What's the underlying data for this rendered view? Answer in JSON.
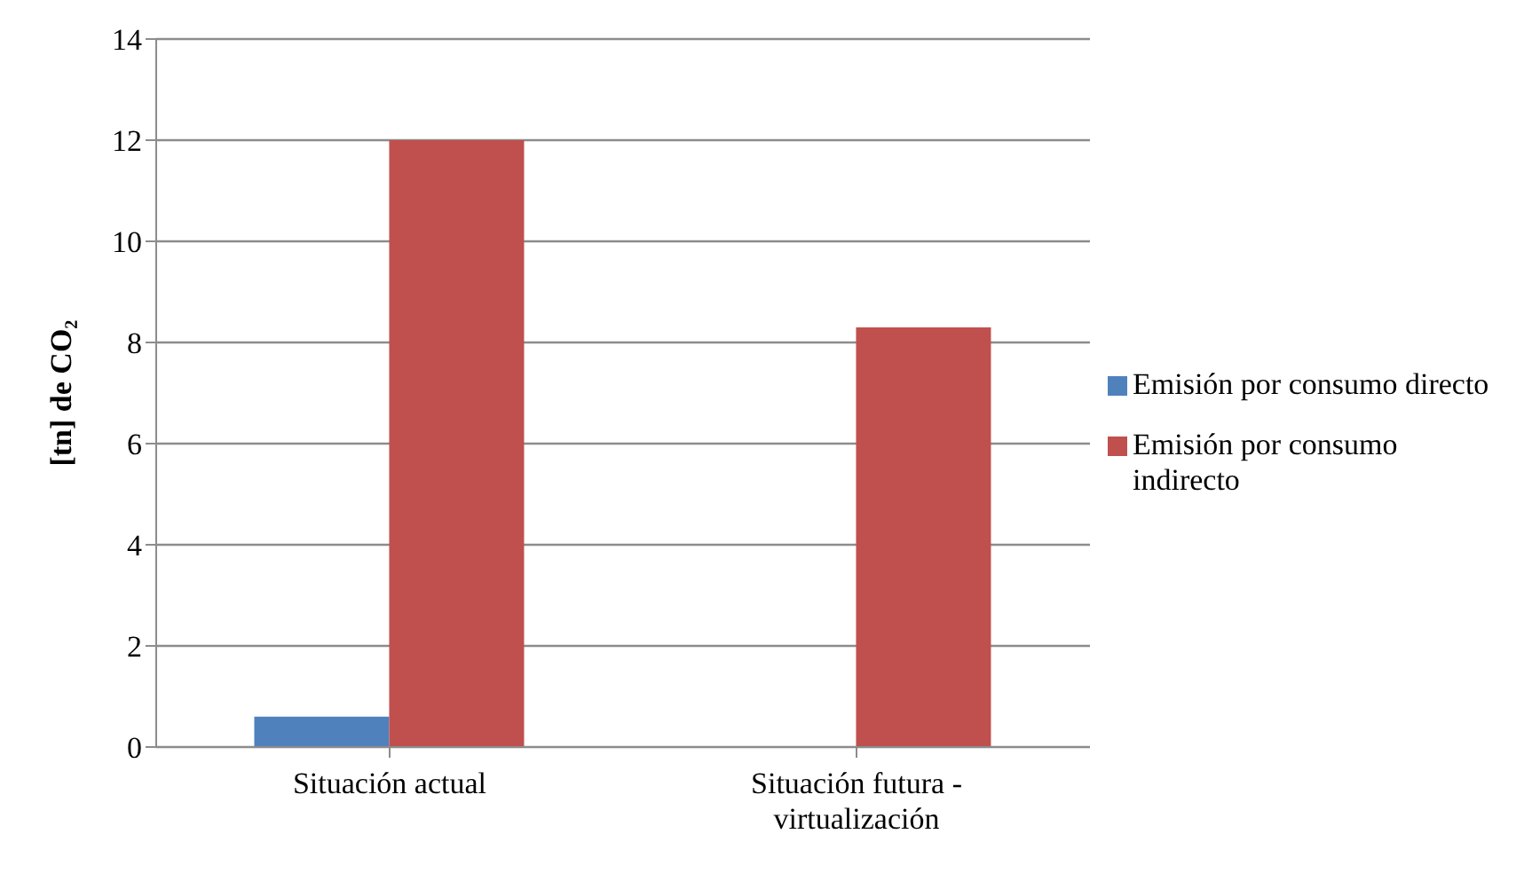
{
  "chart_data": {
    "type": "bar",
    "ylabel": "[tn] de CO₂",
    "categories": [
      "Situación actual",
      "Situación futura - virtualización"
    ],
    "series": [
      {
        "name": "Emisión por consumo directo",
        "color": "#4f81bd",
        "values": [
          0.6,
          0
        ]
      },
      {
        "name": "Emisión por consumo indirecto",
        "color": "#c0504d",
        "values": [
          12,
          8.3
        ]
      }
    ],
    "ylim": [
      0,
      14
    ],
    "yticks": [
      0,
      2,
      4,
      6,
      8,
      10,
      12,
      14
    ],
    "grid": "y",
    "legend": "right"
  }
}
